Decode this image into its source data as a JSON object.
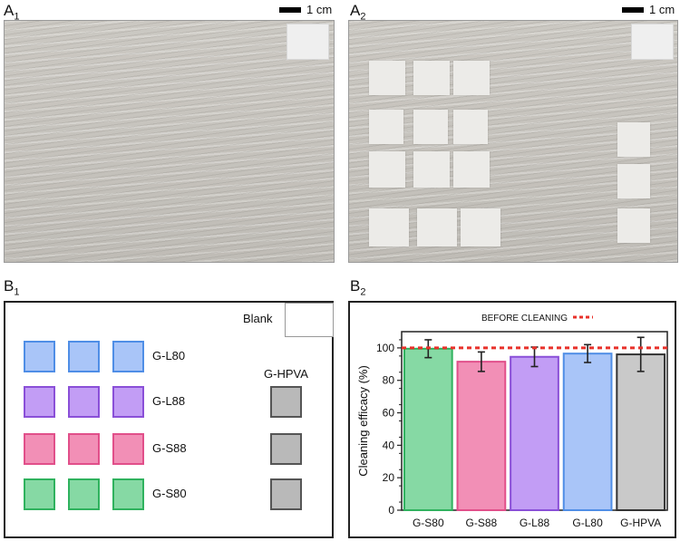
{
  "panels": {
    "a1": {
      "letter": "A",
      "sub": "1"
    },
    "a2": {
      "letter": "A",
      "sub": "2"
    },
    "b1": {
      "letter": "B",
      "sub": "1"
    },
    "b2": {
      "letter": "B",
      "sub": "2"
    }
  },
  "scale_label": "1 cm",
  "schematic": {
    "blank_label": "Blank",
    "hpva_label": "G-HPVA",
    "rows": [
      {
        "label": "G-L80",
        "color": "#a9c5f8",
        "border": "#4f8ee6"
      },
      {
        "label": "G-L88",
        "color": "#c29df5",
        "border": "#8a4fd8"
      },
      {
        "label": "G-S88",
        "color": "#f28fb6",
        "border": "#e14f8a"
      },
      {
        "label": "G-S80",
        "color": "#86d9a4",
        "border": "#2fb25e"
      }
    ],
    "hpva_color": "#b9b9b9",
    "hpva_border": "#555555"
  },
  "chart_data": {
    "type": "bar",
    "categories": [
      "G-S80",
      "G-S88",
      "G-L88",
      "G-L80",
      "G-HPVA"
    ],
    "values": [
      99.5,
      91.5,
      94.5,
      96.5,
      96
    ],
    "errors": [
      5.5,
      6,
      6,
      5.5,
      10.5
    ],
    "colors": [
      "#86d9a4",
      "#f28fb6",
      "#c29df5",
      "#a9c5f8",
      "#c9c9c9"
    ],
    "borders": [
      "#2fb25e",
      "#e14f8a",
      "#8a4fd8",
      "#4f8ee6",
      "#333333"
    ],
    "ylabel": "Cleaning efficacy (%)",
    "ylim": [
      0,
      110
    ],
    "yticks": [
      0,
      20,
      40,
      60,
      80,
      100
    ],
    "reference_line": {
      "label": "BEFORE CLEANING",
      "value": 100,
      "color": "#e8312a"
    }
  }
}
